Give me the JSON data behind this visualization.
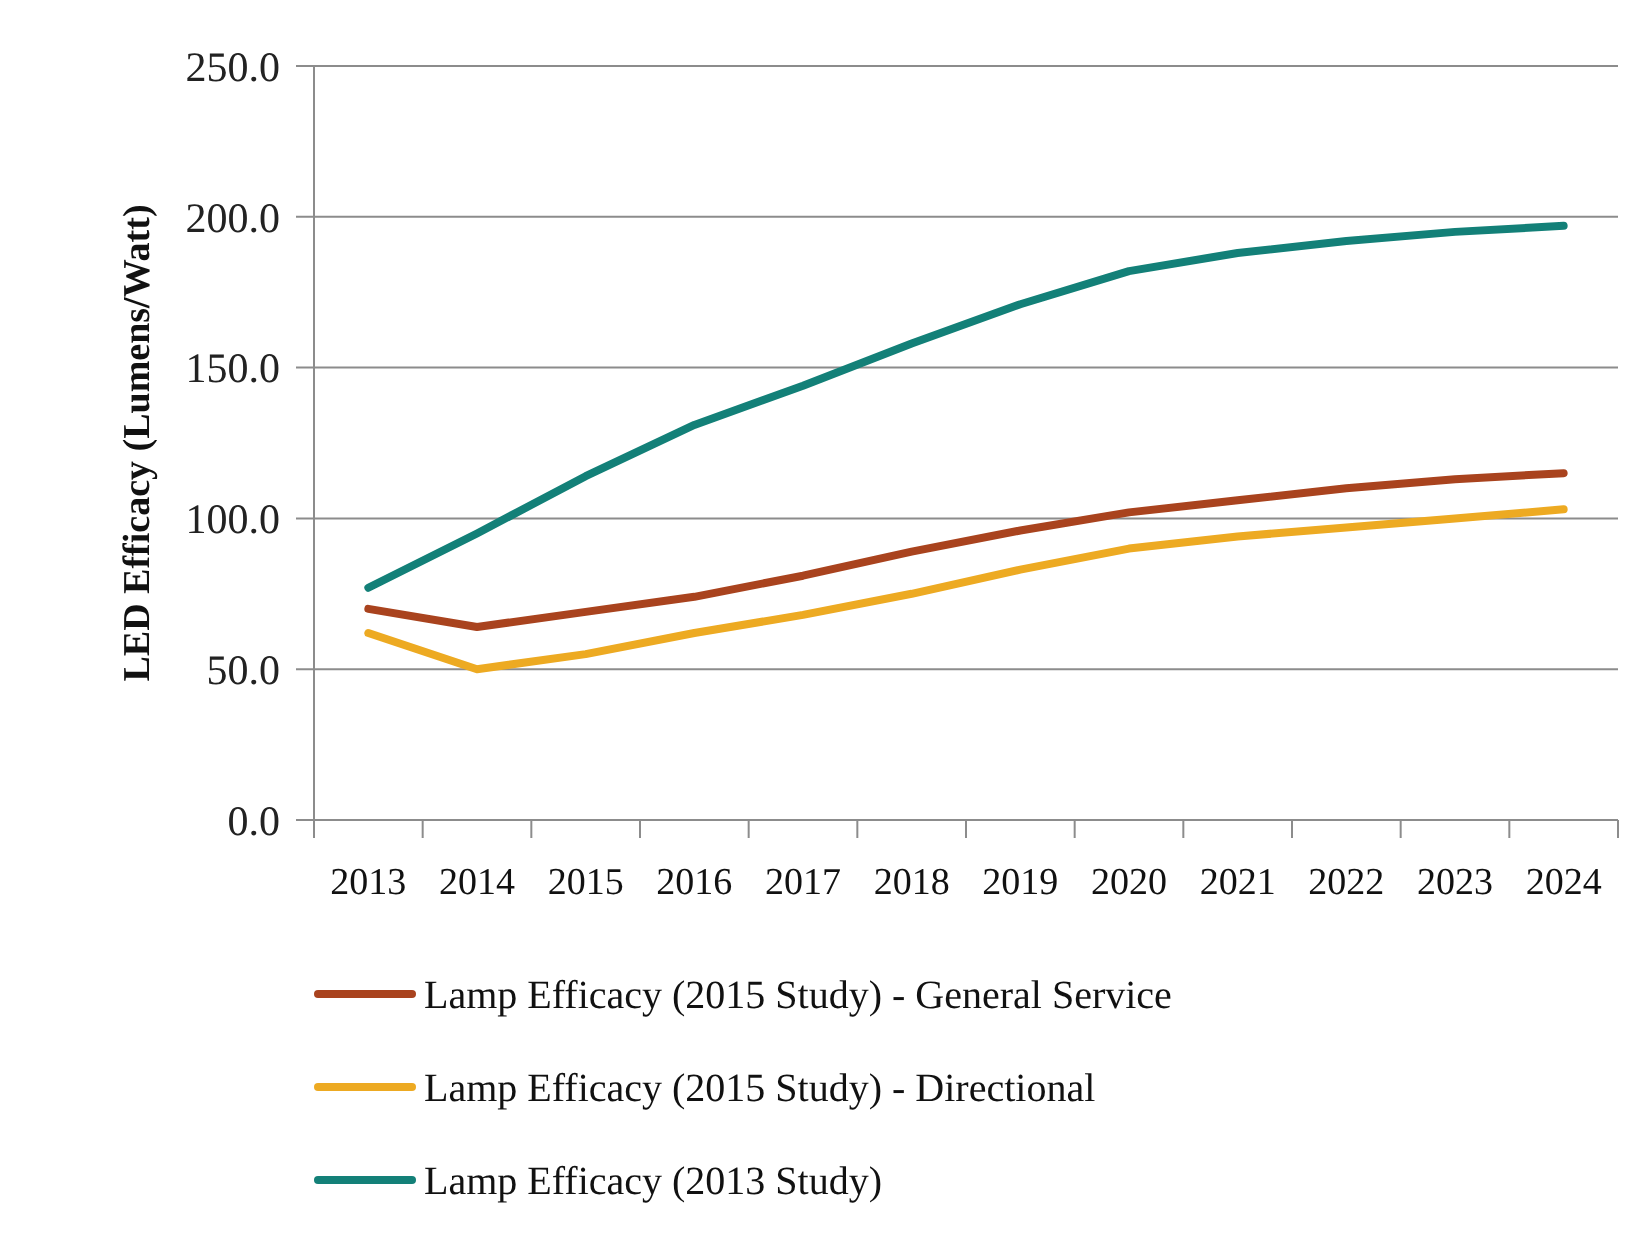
{
  "chart_data": {
    "type": "line",
    "ylabel": "LED Efficacy (Lumens/Watt)",
    "categories": [
      "2013",
      "2014",
      "2015",
      "2016",
      "2017",
      "2018",
      "2019",
      "2020",
      "2021",
      "2022",
      "2023",
      "2024"
    ],
    "series": [
      {
        "name": "Lamp Efficacy (2015 Study) - General Service",
        "color": "#a9431e",
        "values": [
          70,
          64,
          69,
          74,
          81,
          89,
          96,
          102,
          106,
          110,
          113,
          115
        ]
      },
      {
        "name": "Lamp Efficacy (2015 Study) - Directional",
        "color": "#edaa22",
        "values": [
          62,
          50,
          55,
          62,
          68,
          75,
          83,
          90,
          94,
          97,
          100,
          103
        ]
      },
      {
        "name": "Lamp Efficacy (2013 Study)",
        "color": "#138078",
        "values": [
          77,
          95,
          114,
          131,
          144,
          158,
          171,
          182,
          188,
          192,
          195,
          197
        ]
      }
    ],
    "ylim": [
      0,
      250
    ],
    "yticks": [
      {
        "value": 0,
        "label": "0.0"
      },
      {
        "value": 50,
        "label": "50.0"
      },
      {
        "value": 100,
        "label": "100.0"
      },
      {
        "value": 150,
        "label": "150.0"
      },
      {
        "value": 200,
        "label": "200.0"
      },
      {
        "value": 250,
        "label": "250.0"
      }
    ],
    "grid": "y",
    "legend": "bottom",
    "line_style": "solid"
  }
}
